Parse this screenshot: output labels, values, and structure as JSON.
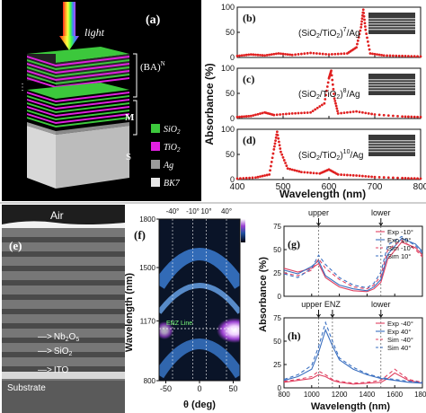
{
  "panel_a": {
    "label": "(a)",
    "light_label": "light",
    "stack_label": "(BA)",
    "stack_sup": "N",
    "m_label": "M",
    "s_label": "S",
    "legend": [
      {
        "sym": "SiO",
        "sub": "2",
        "color": "#3cc83c"
      },
      {
        "sym": "TiO",
        "sub": "2",
        "color": "#e020e0"
      },
      {
        "sym": "Ag",
        "sub": "",
        "color": "#9a9a9a"
      },
      {
        "sym": "BK7",
        "sub": "",
        "color": "#e6e6e6"
      }
    ]
  },
  "panel_bcd": {
    "ylabel": "Absorbance (%)",
    "xlabel": "Wavelength (nm)",
    "xticks": [
      "400",
      "500",
      "600",
      "700",
      "800"
    ],
    "subplots": [
      {
        "label": "(b)",
        "formula": "(SiO",
        "sub": "2",
        "mid": "/TiO",
        "sub2": "2",
        "end": ")",
        "exp": "7",
        "tail": "/Ag",
        "yticks": [
          "0",
          "50",
          "100"
        ]
      },
      {
        "label": "(c)",
        "formula": "(SiO",
        "sub": "2",
        "mid": "/TiO",
        "sub2": "2",
        "end": ")",
        "exp": "8",
        "tail": "/Ag",
        "yticks": [
          "0",
          "50",
          "100"
        ]
      },
      {
        "label": "(d)",
        "formula": "(SiO",
        "sub": "2",
        "mid": "/TiO",
        "sub2": "2",
        "end": ")",
        "exp": "10",
        "tail": "/Ag",
        "yticks": [
          "0",
          "50",
          "100"
        ]
      }
    ]
  },
  "panel_e": {
    "label": "(e)",
    "air": "Air",
    "layers": [
      {
        "arrow": "—>",
        "sym": "Nb",
        "sub": "2",
        "sym2": "O",
        "sub2": "5"
      },
      {
        "arrow": "—>",
        "sym": "SiO",
        "sub": "2",
        "sym2": "",
        "sub2": ""
      },
      {
        "arrow": "—>",
        "sym": "ITO",
        "sub": "",
        "sym2": "",
        "sub2": ""
      }
    ],
    "substrate": "Substrate"
  },
  "panel_f": {
    "label": "(f)",
    "top_ticks": [
      "-40°",
      "-10°",
      "10°",
      "40°"
    ],
    "ylabel": "Wavelength (nm)",
    "yticks": [
      "1800",
      "1500",
      "1170",
      "800"
    ],
    "xlabel": "θ (deg)",
    "xticks": [
      "-50",
      "0",
      "50"
    ],
    "enz_label": "ENZ Line"
  },
  "panel_gh": {
    "ylabel": "Absorbance (%)",
    "xlabel": "Wavelength (nm)",
    "xticks": [
      "800",
      "1000",
      "1200",
      "1400",
      "1600",
      "1800"
    ],
    "g": {
      "label": "(g)",
      "upper": "upper",
      "lower": "lower",
      "yticks": [
        "0",
        "25",
        "50",
        "75"
      ],
      "legend": [
        "Exp -10°",
        "Exp  10°",
        "Sim -10°",
        "Sim  10°"
      ]
    },
    "h": {
      "label": "(h)",
      "upper": "upper",
      "enz": "ENZ",
      "lower": "lower",
      "yticks": [
        "0",
        "25",
        "50",
        "75"
      ],
      "legend": [
        "Exp -40°",
        "Exp  40°",
        "Sim -40°",
        "Sim  40°"
      ]
    }
  },
  "chart_data": [
    {
      "type": "line",
      "panel": "b",
      "xlabel": "Wavelength (nm)",
      "ylabel": "Absorbance (%)",
      "xlim": [
        400,
        800
      ],
      "ylim": [
        0,
        100
      ],
      "x": [
        400,
        430,
        460,
        490,
        520,
        560,
        600,
        640,
        660,
        670,
        675,
        680,
        690,
        720,
        760,
        800
      ],
      "series": [
        {
          "values": [
            3,
            6,
            4,
            8,
            5,
            9,
            6,
            8,
            20,
            60,
            95,
            55,
            8,
            4,
            3,
            2
          ]
        }
      ]
    },
    {
      "type": "line",
      "panel": "c",
      "xlabel": "Wavelength (nm)",
      "ylabel": "Absorbance (%)",
      "xlim": [
        400,
        800
      ],
      "ylim": [
        0,
        100
      ],
      "x": [
        400,
        430,
        460,
        480,
        520,
        560,
        590,
        600,
        605,
        612,
        620,
        660,
        700,
        760,
        800
      ],
      "series": [
        {
          "values": [
            3,
            5,
            12,
            7,
            10,
            12,
            30,
            80,
            95,
            40,
            10,
            14,
            8,
            4,
            3
          ]
        }
      ]
    },
    {
      "type": "line",
      "panel": "d",
      "xlabel": "Wavelength (nm)",
      "ylabel": "Absorbance (%)",
      "xlim": [
        400,
        800
      ],
      "ylim": [
        0,
        100
      ],
      "x": [
        400,
        440,
        470,
        480,
        487,
        495,
        510,
        540,
        580,
        600,
        620,
        660,
        700,
        760,
        800
      ],
      "series": [
        {
          "values": [
            2,
            4,
            10,
            60,
            95,
            55,
            22,
            15,
            12,
            20,
            10,
            8,
            5,
            3,
            2
          ]
        }
      ]
    },
    {
      "type": "line",
      "panel": "g",
      "xlabel": "Wavelength (nm)",
      "ylabel": "Absorbance (%)",
      "xlim": [
        800,
        1800
      ],
      "ylim": [
        0,
        75
      ],
      "x": [
        800,
        900,
        1000,
        1050,
        1100,
        1200,
        1300,
        1400,
        1450,
        1500,
        1550,
        1650,
        1750,
        1800
      ],
      "series": [
        {
          "name": "Exp -10°",
          "values": [
            30,
            26,
            30,
            35,
            20,
            10,
            6,
            5,
            8,
            15,
            40,
            58,
            52,
            44
          ]
        },
        {
          "name": "Exp  10°",
          "values": [
            28,
            24,
            32,
            38,
            22,
            12,
            8,
            6,
            10,
            18,
            45,
            62,
            56,
            48
          ]
        },
        {
          "name": "Sim -10°",
          "values": [
            25,
            22,
            28,
            40,
            30,
            18,
            10,
            8,
            12,
            22,
            50,
            60,
            50,
            42
          ]
        },
        {
          "name": "Sim  10°",
          "values": [
            24,
            20,
            30,
            44,
            34,
            20,
            12,
            9,
            14,
            26,
            55,
            64,
            54,
            46
          ]
        }
      ]
    },
    {
      "type": "line",
      "panel": "h",
      "xlabel": "Wavelength (nm)",
      "ylabel": "Absorbance (%)",
      "xlim": [
        800,
        1800
      ],
      "ylim": [
        0,
        75
      ],
      "x": [
        800,
        900,
        1000,
        1050,
        1100,
        1150,
        1200,
        1300,
        1400,
        1500,
        1550,
        1600,
        1700,
        1800
      ],
      "series": [
        {
          "name": "Exp -40°",
          "values": [
            6,
            8,
            10,
            14,
            12,
            8,
            6,
            4,
            5,
            6,
            10,
            16,
            8,
            5
          ]
        },
        {
          "name": "Exp  40°",
          "values": [
            8,
            12,
            20,
            38,
            62,
            45,
            30,
            20,
            14,
            10,
            9,
            8,
            6,
            5
          ]
        },
        {
          "name": "Sim -40°",
          "values": [
            7,
            9,
            12,
            18,
            14,
            9,
            7,
            5,
            6,
            8,
            14,
            20,
            9,
            6
          ]
        },
        {
          "name": "Sim  40°",
          "values": [
            9,
            14,
            24,
            44,
            70,
            50,
            32,
            22,
            15,
            11,
            10,
            9,
            7,
            6
          ]
        }
      ]
    }
  ]
}
